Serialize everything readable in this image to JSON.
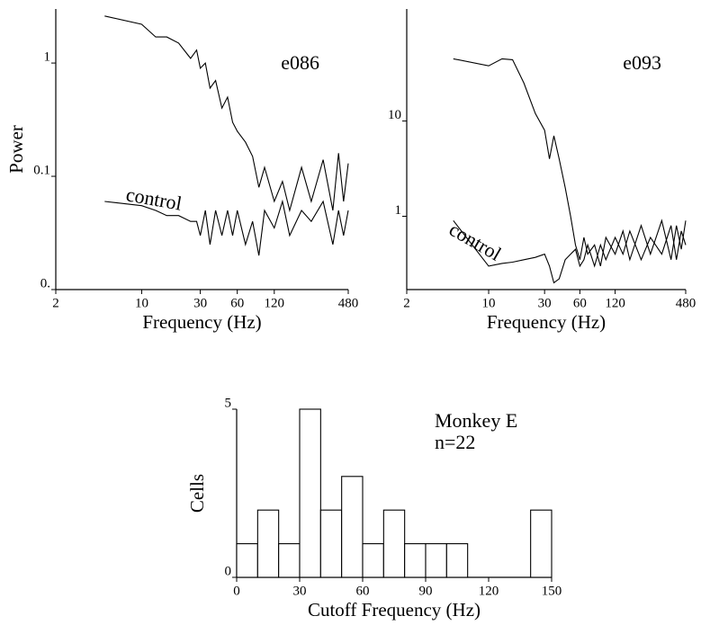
{
  "chart_data": [
    {
      "type": "line",
      "x_label": "Frequency (Hz)",
      "y_label": "Power",
      "annotation": "e086",
      "xscale": "log",
      "yscale": "log",
      "xlim": [
        2,
        480
      ],
      "ylim": [
        0.01,
        3
      ],
      "xticks": [
        2,
        10,
        30,
        60,
        120,
        480
      ],
      "yticks": [
        {
          "value": 0.01,
          "label": "0."
        },
        0.1,
        1
      ],
      "x": [
        5,
        10,
        13,
        16,
        20,
        25,
        28,
        30,
        33,
        36,
        40,
        45,
        50,
        55,
        60,
        70,
        80,
        90,
        100,
        120,
        140,
        160,
        200,
        240,
        300,
        360,
        400,
        440,
        480
      ],
      "series": [
        {
          "color": "#000000",
          "values": [
            2.6,
            2.2,
            1.7,
            1.7,
            1.5,
            1.1,
            1.3,
            0.9,
            1.0,
            0.6,
            0.7,
            0.4,
            0.5,
            0.3,
            0.25,
            0.2,
            0.15,
            0.08,
            0.12,
            0.06,
            0.09,
            0.05,
            0.12,
            0.06,
            0.14,
            0.05,
            0.16,
            0.06,
            0.13
          ]
        },
        {
          "name": "control",
          "color": "#000000",
          "values": [
            0.06,
            0.055,
            0.05,
            0.045,
            0.045,
            0.04,
            0.04,
            0.03,
            0.05,
            0.025,
            0.05,
            0.03,
            0.05,
            0.03,
            0.05,
            0.025,
            0.04,
            0.02,
            0.05,
            0.035,
            0.06,
            0.03,
            0.05,
            0.04,
            0.06,
            0.025,
            0.05,
            0.03,
            0.05
          ]
        }
      ]
    },
    {
      "type": "line",
      "x_label": "Frequency (Hz)",
      "annotation": "e093",
      "xscale": "log",
      "yscale": "log",
      "xlim": [
        2,
        480
      ],
      "ylim": [
        0.17,
        150
      ],
      "xticks": [
        2,
        10,
        30,
        60,
        120,
        480
      ],
      "yticks": [
        1,
        10
      ],
      "x": [
        5,
        10,
        13,
        16,
        20,
        25,
        30,
        33,
        36,
        40,
        45,
        50,
        55,
        60,
        65,
        70,
        80,
        90,
        100,
        120,
        140,
        160,
        200,
        240,
        300,
        360,
        400,
        440,
        480
      ],
      "series": [
        {
          "color": "#000000",
          "values": [
            45,
            38,
            45,
            44,
            25,
            12,
            8,
            4,
            7,
            4,
            2,
            1,
            0.5,
            0.35,
            0.6,
            0.4,
            0.5,
            0.3,
            0.6,
            0.4,
            0.7,
            0.35,
            0.8,
            0.4,
            0.9,
            0.35,
            0.8,
            0.45,
            0.9
          ]
        },
        {
          "name": "control",
          "color": "#000000",
          "values": [
            0.9,
            0.3,
            0.32,
            0.33,
            0.35,
            0.37,
            0.4,
            0.3,
            0.2,
            0.22,
            0.35,
            0.4,
            0.45,
            0.3,
            0.35,
            0.5,
            0.3,
            0.5,
            0.35,
            0.6,
            0.4,
            0.7,
            0.35,
            0.6,
            0.4,
            0.8,
            0.35,
            0.7,
            0.5
          ]
        }
      ]
    },
    {
      "type": "histogram",
      "x_label": "Cutoff Frequency (Hz)",
      "y_label": "Cells",
      "annotation": "Monkey E",
      "annotation2": "n=22",
      "bins": [
        0,
        10,
        20,
        30,
        40,
        50,
        60,
        70,
        80,
        90,
        100,
        110,
        120,
        130,
        140,
        150
      ],
      "values": [
        1,
        2,
        1,
        5,
        2,
        3,
        1,
        2,
        1,
        1,
        1,
        0,
        0,
        0,
        2
      ],
      "color": "#ffffff",
      "xlim": [
        0,
        150
      ],
      "ylim": [
        0,
        5
      ],
      "xticks": [
        0,
        30,
        60,
        90,
        120,
        150
      ],
      "yticks": [
        0,
        5
      ]
    }
  ]
}
